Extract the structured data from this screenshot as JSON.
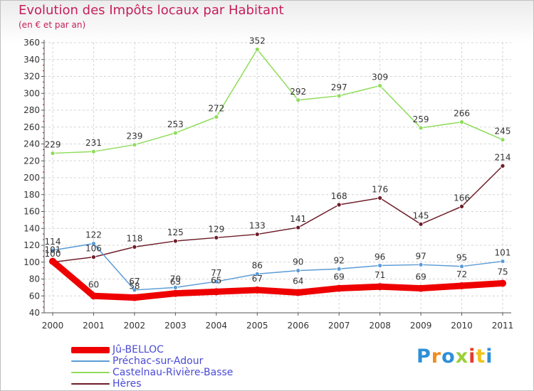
{
  "title": "Evolution des Impôts locaux par Habitant",
  "subtitle": "(en € et par an)",
  "logo": "Proxiti",
  "chart_data": {
    "type": "line",
    "title": "Evolution des Impôts locaux par Habitant",
    "subtitle": "(en € et par an)",
    "xlabel": "",
    "ylabel": "",
    "x": [
      "2000",
      "2001",
      "2002",
      "2003",
      "2004",
      "2005",
      "2006",
      "2007",
      "2008",
      "2009",
      "2010",
      "2011"
    ],
    "ylim": [
      40,
      360
    ],
    "yticks": [
      40,
      60,
      80,
      100,
      120,
      140,
      160,
      180,
      200,
      220,
      240,
      260,
      280,
      300,
      320,
      340,
      360
    ],
    "grid": true,
    "legend_position": "bottom-left",
    "series": [
      {
        "name": "Jû-BELLOC",
        "color": "#ee0000",
        "values": [
          101,
          60,
          58,
          63,
          65,
          67,
          64,
          69,
          71,
          69,
          72,
          75
        ]
      },
      {
        "name": "Préchac-sur-Adour",
        "color": "#5b9bd5",
        "values": [
          114,
          122,
          67,
          70,
          77,
          86,
          90,
          92,
          96,
          97,
          95,
          101
        ]
      },
      {
        "name": "Castelnau-Rivière-Basse",
        "color": "#8fdc5a",
        "values": [
          229,
          231,
          239,
          253,
          272,
          352,
          292,
          297,
          309,
          259,
          266,
          245
        ]
      },
      {
        "name": "Hères",
        "color": "#6e1e2a",
        "values": [
          100,
          106,
          118,
          125,
          129,
          133,
          141,
          168,
          176,
          145,
          166,
          214
        ]
      }
    ]
  }
}
